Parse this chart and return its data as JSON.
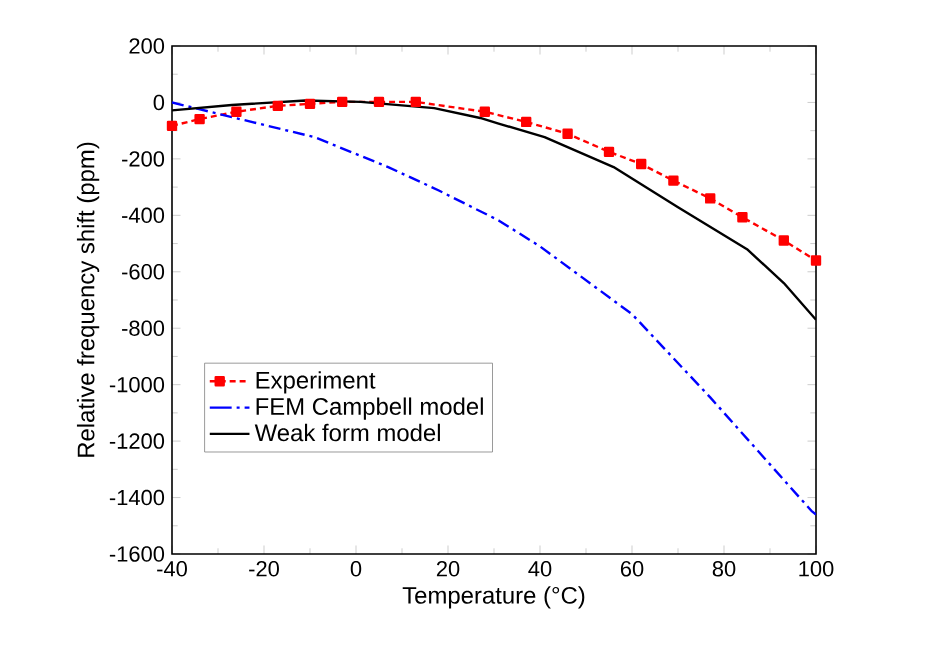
{
  "chart_data": {
    "type": "line",
    "xlabel": "Temperature (°C)",
    "ylabel": "Relative frequency shift (ppm)",
    "xlim": [
      -40,
      100
    ],
    "xticks": [
      -40,
      -20,
      0,
      20,
      40,
      60,
      80,
      100
    ],
    "ylim": [
      -1600,
      200
    ],
    "yticks": [
      -1600,
      -1400,
      -1200,
      -1000,
      -800,
      -600,
      -400,
      -200,
      0,
      200
    ],
    "grid": false,
    "legend": "bottom left",
    "series": [
      {
        "name": "Experiment",
        "color": "#ff0000",
        "marker": "square",
        "line_style": "dashed",
        "x": [
          -40,
          -34,
          -26,
          -17,
          -10,
          -3,
          5,
          13,
          28,
          37,
          46,
          55,
          62,
          69,
          77,
          84,
          93,
          100
        ],
        "values": [
          -83,
          -59,
          -33,
          -12,
          -5,
          2,
          2,
          2,
          -33,
          -69,
          -111,
          -175,
          -218,
          -277,
          -340,
          -407,
          -489,
          -560
        ]
      },
      {
        "name": "FEM Campbell model",
        "color": "#0000ff",
        "marker": "none",
        "line_style": "dashdot",
        "x": [
          -40,
          -27,
          -9,
          7,
          18,
          31,
          40,
          60,
          77,
          99,
          100
        ],
        "values": [
          0,
          -52,
          -123,
          -229,
          -312,
          -418,
          -510,
          -750,
          -1045,
          -1447,
          -1460
        ]
      },
      {
        "name": "Weak form model",
        "color": "#000000",
        "marker": "none",
        "line_style": "solid",
        "x": [
          -40,
          -27,
          -11,
          1,
          17,
          27,
          31,
          41,
          56,
          70,
          85,
          93,
          100
        ],
        "values": [
          -28,
          -9,
          7,
          2,
          -20,
          -55,
          -75,
          -123,
          -229,
          -371,
          -520,
          -640,
          -770
        ]
      }
    ]
  }
}
